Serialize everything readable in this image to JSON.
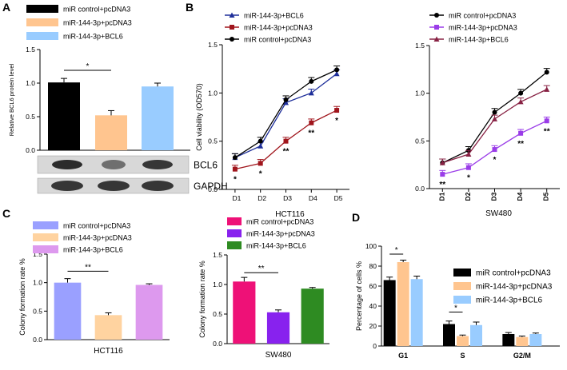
{
  "panel_letters": [
    "A",
    "B",
    "C",
    "D"
  ],
  "colors": {
    "black": "#000000",
    "orange": "#FFC58F",
    "blue": "#99CCFF",
    "navy": "#1F2F9A",
    "darkred": "#A0151C",
    "purple_light": "#9AA0FF",
    "orange_light": "#FFD3A0",
    "violet": "#DD99EE",
    "magenta": "#EE1177",
    "violet_dark": "#8822EE",
    "green": "#2E8B22",
    "magenta2": "#882244",
    "purple2": "#9A3CE8"
  },
  "blot": {
    "labels": [
      "BCL6",
      "GAPDH"
    ]
  },
  "chart_data": [
    {
      "id": "A",
      "type": "bar",
      "title": "",
      "ylabel": "Relative BCL6 protein level",
      "xlabel": "",
      "ylim": [
        0,
        1.5
      ],
      "yticks": [
        "0.0",
        "0.5",
        "1.0",
        "1.5"
      ],
      "ytick_values": [
        0,
        0.5,
        1.0,
        1.5
      ],
      "categories": [
        "miR control+pcDNA3",
        "miR-144-3p+pcDNA3",
        "miR-144-3p+BCL6"
      ],
      "legend": [
        "miR control+pcDNA3",
        "miR-144-3p+pcDNA3",
        "miR-144-3p+BCL6"
      ],
      "values": [
        1.01,
        0.52,
        0.95
      ],
      "errors": [
        0.06,
        0.07,
        0.05
      ],
      "colors": [
        "#000000",
        "#FFC58F",
        "#99CCFF"
      ],
      "significance": "*"
    },
    {
      "id": "B1",
      "type": "line",
      "title": "HCT116",
      "ylabel": "Cell viability (OD570)",
      "xlabel": "HCT116",
      "ylim": [
        0,
        1.5
      ],
      "yticks": [
        "0.0",
        "0.5",
        "1.0",
        "1.5"
      ],
      "ytick_values": [
        0,
        0.5,
        1.0,
        1.5
      ],
      "x": [
        "D1",
        "D2",
        "D3",
        "D4",
        "D5"
      ],
      "legend": [
        "miR-144-3p+BCL6",
        "miR-144-3p+pcDNA3",
        "miR control+pcDNA3"
      ],
      "series": [
        {
          "name": "miR-144-3p+BCL6",
          "values": [
            0.33,
            0.45,
            0.9,
            1.0,
            1.2
          ],
          "color": "#1F2F9A",
          "marker": "triangle"
        },
        {
          "name": "miR-144-3p+pcDNA3",
          "values": [
            0.21,
            0.27,
            0.5,
            0.69,
            0.82
          ],
          "color": "#A0151C",
          "marker": "square"
        },
        {
          "name": "miR control+pcDNA3",
          "values": [
            0.33,
            0.5,
            0.93,
            1.12,
            1.24
          ],
          "color": "#000000",
          "marker": "circle"
        }
      ],
      "annotations": [
        "*",
        "*",
        "**",
        "**",
        "*"
      ]
    },
    {
      "id": "B2",
      "type": "line",
      "title": "SW480",
      "ylabel": "",
      "xlabel": "SW480",
      "ylim": [
        0,
        1.5
      ],
      "yticks": [
        "0.0",
        "0.5",
        "1.0",
        "1.5"
      ],
      "ytick_values": [
        0,
        0.5,
        1.0,
        1.5
      ],
      "x": [
        "D1",
        "D2",
        "D3",
        "D4",
        "D5"
      ],
      "legend": [
        "miR control+pcDNA3",
        "miR-144-3p+pcDNA3",
        "miR-144-3p+BCL6"
      ],
      "series": [
        {
          "name": "miR control+pcDNA3",
          "values": [
            0.27,
            0.4,
            0.8,
            1.0,
            1.22
          ],
          "color": "#000000",
          "marker": "circle"
        },
        {
          "name": "miR-144-3p+pcDNA3",
          "values": [
            0.15,
            0.22,
            0.41,
            0.58,
            0.71
          ],
          "color": "#9A3CE8",
          "marker": "square"
        },
        {
          "name": "miR-144-3p+BCL6",
          "values": [
            0.27,
            0.36,
            0.73,
            0.91,
            1.04
          ],
          "color": "#882244",
          "marker": "triangle"
        }
      ],
      "annotations": [
        "**",
        "*",
        "*",
        "**",
        "**"
      ]
    },
    {
      "id": "C1",
      "type": "bar",
      "title": "HCT116",
      "ylabel": "Colony formation rate %",
      "xlabel": "HCT116",
      "ylim": [
        0,
        1.5
      ],
      "yticks": [
        "0.0",
        "0.5",
        "1.0",
        "1.5"
      ],
      "ytick_values": [
        0,
        0.5,
        1.0,
        1.5
      ],
      "categories": [
        "miR control+pcDNA3",
        "miR-144-3p+pcDNA3",
        "miR-144-3p+BCL6"
      ],
      "legend": [
        "miR control+pcDNA3",
        "miR-144-3p+pcDNA3",
        "miR-144-3p+BCL6"
      ],
      "values": [
        1.0,
        0.43,
        0.96
      ],
      "errors": [
        0.07,
        0.04,
        0.02
      ],
      "colors": [
        "#9AA0FF",
        "#FFD3A0",
        "#DD99EE"
      ],
      "significance": "**"
    },
    {
      "id": "C2",
      "type": "bar",
      "title": "SW480",
      "ylabel": "Colony formation rate %",
      "xlabel": "SW480",
      "ylim": [
        0,
        1.5
      ],
      "yticks": [
        "0.0",
        "0.5",
        "1.0",
        "1.5"
      ],
      "ytick_values": [
        0,
        0.5,
        1.0,
        1.5
      ],
      "categories": [
        "miR control+pcDNA3",
        "miR-144-3p+pcDNA3",
        "miR-144-3p+BCL6"
      ],
      "legend": [
        "miR control+pcDNA3",
        "miR-144-3p+pcDNA3",
        "miR-144-3p+BCL6"
      ],
      "values": [
        1.05,
        0.53,
        0.93
      ],
      "errors": [
        0.07,
        0.04,
        0.02
      ],
      "colors": [
        "#EE1177",
        "#8822EE",
        "#2E8B22"
      ],
      "significance": "**"
    },
    {
      "id": "D",
      "type": "bar",
      "title": "",
      "ylabel": "Percentage of cells %",
      "xlabel": "",
      "ylim": [
        0,
        100
      ],
      "yticks": [
        "0",
        "20",
        "40",
        "60",
        "80",
        "100"
      ],
      "ytick_values": [
        0,
        20,
        40,
        60,
        80,
        100
      ],
      "categories": [
        "G1",
        "S",
        "G2/M"
      ],
      "legend": [
        "miR control+pcDNA3",
        "miR-144-3p+pcDNA3",
        "miR-144-3p+BCL6"
      ],
      "series": [
        {
          "name": "miR control+pcDNA3",
          "values": [
            66,
            22,
            12
          ],
          "errors": [
            3,
            3,
            1.5
          ],
          "color": "#000000"
        },
        {
          "name": "miR-144-3p+pcDNA3",
          "values": [
            84,
            10,
            9
          ],
          "errors": [
            2,
            1,
            1
          ],
          "color": "#FFC58F"
        },
        {
          "name": "miR-144-3p+BCL6",
          "values": [
            67,
            21,
            12
          ],
          "errors": [
            3,
            3,
            1
          ],
          "color": "#99CCFF"
        }
      ],
      "significance": [
        "*",
        "*"
      ]
    }
  ]
}
